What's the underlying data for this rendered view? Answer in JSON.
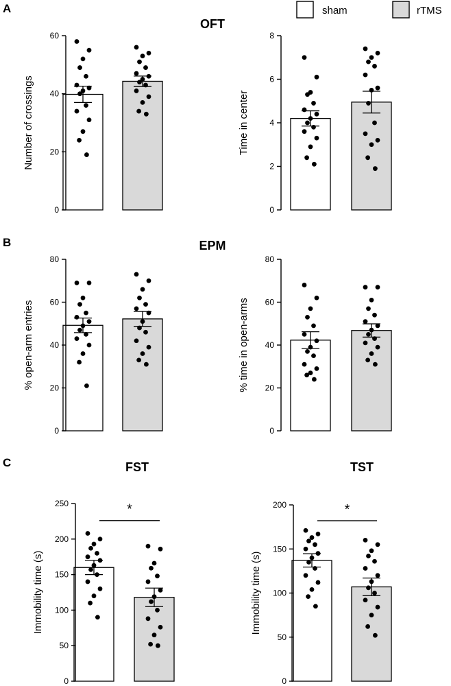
{
  "legend": {
    "sham": {
      "label": "sham",
      "fill": "#ffffff"
    },
    "rtms": {
      "label": "rTMS",
      "fill": "#d9d9d9"
    }
  },
  "panels": {
    "A": {
      "letter": "A",
      "title": "OFT"
    },
    "B": {
      "letter": "B",
      "title": "EPM"
    },
    "C": {
      "letter": "C",
      "titles": [
        "FST",
        "TST"
      ]
    }
  },
  "chart_data": [
    {
      "id": "oft-crossings",
      "type": "bar",
      "section": "OFT",
      "categories": [
        "sham",
        "rTMS"
      ],
      "xlabel": "",
      "ylabel": "Number of crossings",
      "ylim": [
        0,
        60
      ],
      "yticks": [
        0,
        20,
        40,
        60
      ],
      "series": [
        {
          "name": "sham",
          "mean": 39.8,
          "sem": 2.8,
          "points": [
            58,
            55,
            52,
            49,
            46,
            43,
            42,
            41,
            40,
            36,
            34,
            31,
            27,
            24,
            19
          ]
        },
        {
          "name": "rTMS",
          "mean": 44.3,
          "sem": 1.8,
          "points": [
            56,
            54,
            53,
            51,
            49,
            47,
            46,
            45,
            44,
            43,
            41,
            39,
            37,
            34,
            33
          ]
        }
      ],
      "significance": null
    },
    {
      "id": "oft-center",
      "type": "bar",
      "section": "OFT",
      "categories": [
        "sham",
        "rTMS"
      ],
      "xlabel": "",
      "ylabel": "Time in center",
      "ylim": [
        0,
        8
      ],
      "yticks": [
        0,
        2,
        4,
        6,
        8
      ],
      "series": [
        {
          "name": "sham",
          "mean": 4.2,
          "sem": 0.35,
          "points": [
            7.0,
            6.1,
            5.4,
            5.3,
            4.9,
            4.6,
            4.4,
            4.2,
            4.0,
            3.8,
            3.6,
            3.3,
            2.9,
            2.4,
            2.1
          ]
        },
        {
          "name": "rTMS",
          "mean": 4.95,
          "sem": 0.5,
          "points": [
            7.4,
            7.2,
            7.0,
            6.8,
            6.6,
            6.2,
            5.6,
            5.5,
            4.9,
            4.0,
            3.5,
            3.2,
            3.0,
            2.4,
            1.9
          ]
        }
      ],
      "significance": null
    },
    {
      "id": "epm-entries",
      "type": "bar",
      "section": "EPM",
      "categories": [
        "sham",
        "rTMS"
      ],
      "xlabel": "",
      "ylabel": "% open-arm entries",
      "ylim": [
        0,
        80
      ],
      "yticks": [
        0,
        20,
        40,
        60,
        80
      ],
      "series": [
        {
          "name": "sham",
          "mean": 49.2,
          "sem": 3.4,
          "points": [
            69,
            69,
            62,
            59,
            55,
            53,
            51,
            49,
            47,
            45,
            43,
            40,
            36,
            32,
            21
          ]
        },
        {
          "name": "rTMS",
          "mean": 52.2,
          "sem": 3.5,
          "points": [
            73,
            70,
            66,
            62,
            59,
            57,
            55,
            51,
            48,
            46,
            42,
            39,
            36,
            33,
            31
          ]
        }
      ],
      "significance": null
    },
    {
      "id": "epm-time",
      "type": "bar",
      "section": "EPM",
      "categories": [
        "sham",
        "rTMS"
      ],
      "xlabel": "",
      "ylabel": "% time in open-arms",
      "ylim": [
        0,
        80
      ],
      "yticks": [
        0,
        20,
        40,
        60,
        80
      ],
      "series": [
        {
          "name": "sham",
          "mean": 42.3,
          "sem": 3.9,
          "points": [
            68,
            62,
            57,
            53,
            49,
            45,
            42,
            39,
            37,
            35,
            31,
            29,
            27,
            26,
            24
          ]
        },
        {
          "name": "rTMS",
          "mean": 46.8,
          "sem": 3.1,
          "points": [
            67,
            67,
            61,
            57,
            54,
            51,
            49,
            47,
            45,
            43,
            41,
            39,
            36,
            33,
            31
          ]
        }
      ],
      "significance": null
    },
    {
      "id": "fst",
      "type": "bar",
      "section": "FST",
      "categories": [
        "sham",
        "rTMS"
      ],
      "xlabel": "",
      "ylabel": "Immobility time (s)",
      "ylim": [
        0,
        250
      ],
      "yticks": [
        0,
        50,
        100,
        150,
        200,
        250
      ],
      "series": [
        {
          "name": "sham",
          "mean": 160,
          "sem": 10,
          "points": [
            208,
            200,
            193,
            187,
            180,
            175,
            170,
            163,
            157,
            150,
            140,
            130,
            120,
            110,
            90
          ]
        },
        {
          "name": "rTMS",
          "mean": 118,
          "sem": 13,
          "points": [
            190,
            186,
            166,
            159,
            148,
            140,
            128,
            119,
            112,
            100,
            88,
            76,
            65,
            52,
            50
          ]
        }
      ],
      "significance": {
        "label": "*",
        "y": 226,
        "star_y": 236
      }
    },
    {
      "id": "tst",
      "type": "bar",
      "section": "TST",
      "categories": [
        "sham",
        "rTMS"
      ],
      "xlabel": "",
      "ylabel": "Immobility time (s)",
      "ylim": [
        0,
        200
      ],
      "yticks": [
        0,
        50,
        100,
        150,
        200
      ],
      "series": [
        {
          "name": "sham",
          "mean": 137,
          "sem": 7.5,
          "points": [
            171,
            167,
            163,
            159,
            155,
            150,
            145,
            140,
            135,
            128,
            120,
            112,
            104,
            96,
            85
          ]
        },
        {
          "name": "rTMS",
          "mean": 107,
          "sem": 10,
          "points": [
            160,
            155,
            148,
            142,
            136,
            128,
            120,
            113,
            106,
            100,
            92,
            84,
            75,
            62,
            52
          ]
        }
      ],
      "significance": {
        "label": "*",
        "y": 182,
        "star_y": 190
      }
    }
  ]
}
